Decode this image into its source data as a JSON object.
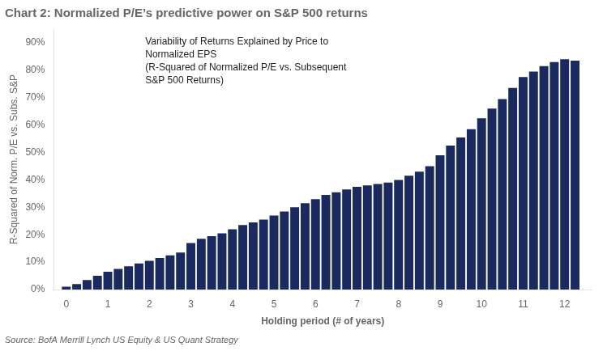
{
  "chart_data": {
    "type": "bar",
    "title": "Chart 2: Normalized P/E’s predictive power on S&P 500 returns",
    "xlabel": "Holding period (# of years)",
    "ylabel": "R-Squared of Norm. P/E vs. Subs. S&P",
    "annotation": "Variability of Returns Explained by Price to\nNormalized EPS\n(R-Squared of Normalized P/E vs. Subsequent\nS&P 500 Returns)",
    "source": "Source: BofA Merrill Lynch US Equity & US Quant Strategy",
    "color": "#1b2a5e",
    "x": [
      0.0,
      0.25,
      0.5,
      0.75,
      1.0,
      1.25,
      1.5,
      1.75,
      2.0,
      2.25,
      2.5,
      2.75,
      3.0,
      3.25,
      3.5,
      3.75,
      4.0,
      4.25,
      4.5,
      4.75,
      5.0,
      5.25,
      5.5,
      5.75,
      6.0,
      6.25,
      6.5,
      6.75,
      7.0,
      7.25,
      7.5,
      7.75,
      8.0,
      8.25,
      8.5,
      8.75,
      9.0,
      9.25,
      9.5,
      9.75,
      10.0,
      10.25,
      10.5,
      10.75,
      11.0,
      11.25,
      11.5,
      11.75,
      12.0,
      12.25
    ],
    "values": [
      0.01,
      0.02,
      0.035,
      0.05,
      0.065,
      0.075,
      0.085,
      0.095,
      0.105,
      0.115,
      0.125,
      0.135,
      0.17,
      0.185,
      0.195,
      0.205,
      0.22,
      0.235,
      0.245,
      0.255,
      0.27,
      0.285,
      0.3,
      0.315,
      0.33,
      0.345,
      0.355,
      0.365,
      0.375,
      0.38,
      0.385,
      0.39,
      0.4,
      0.415,
      0.43,
      0.45,
      0.49,
      0.525,
      0.555,
      0.585,
      0.625,
      0.66,
      0.695,
      0.735,
      0.775,
      0.795,
      0.815,
      0.83,
      0.84,
      0.835
    ],
    "xlim": [
      -0.3,
      12.65
    ],
    "xticks": [
      0,
      1,
      2,
      3,
      4,
      5,
      6,
      7,
      8,
      9,
      10,
      11,
      12
    ],
    "ylim": [
      0,
      0.95
    ],
    "yticks": [
      {
        "value": 0.0,
        "label": "0%"
      },
      {
        "value": 0.1,
        "label": "10%"
      },
      {
        "value": 0.2,
        "label": "20%"
      },
      {
        "value": 0.3,
        "label": "30%"
      },
      {
        "value": 0.4,
        "label": "40%"
      },
      {
        "value": 0.5,
        "label": "50%"
      },
      {
        "value": 0.6,
        "label": "60%"
      },
      {
        "value": 0.7,
        "label": "70%"
      },
      {
        "value": 0.8,
        "label": "80%"
      },
      {
        "value": 0.9,
        "label": "90%"
      }
    ],
    "grid": false
  }
}
